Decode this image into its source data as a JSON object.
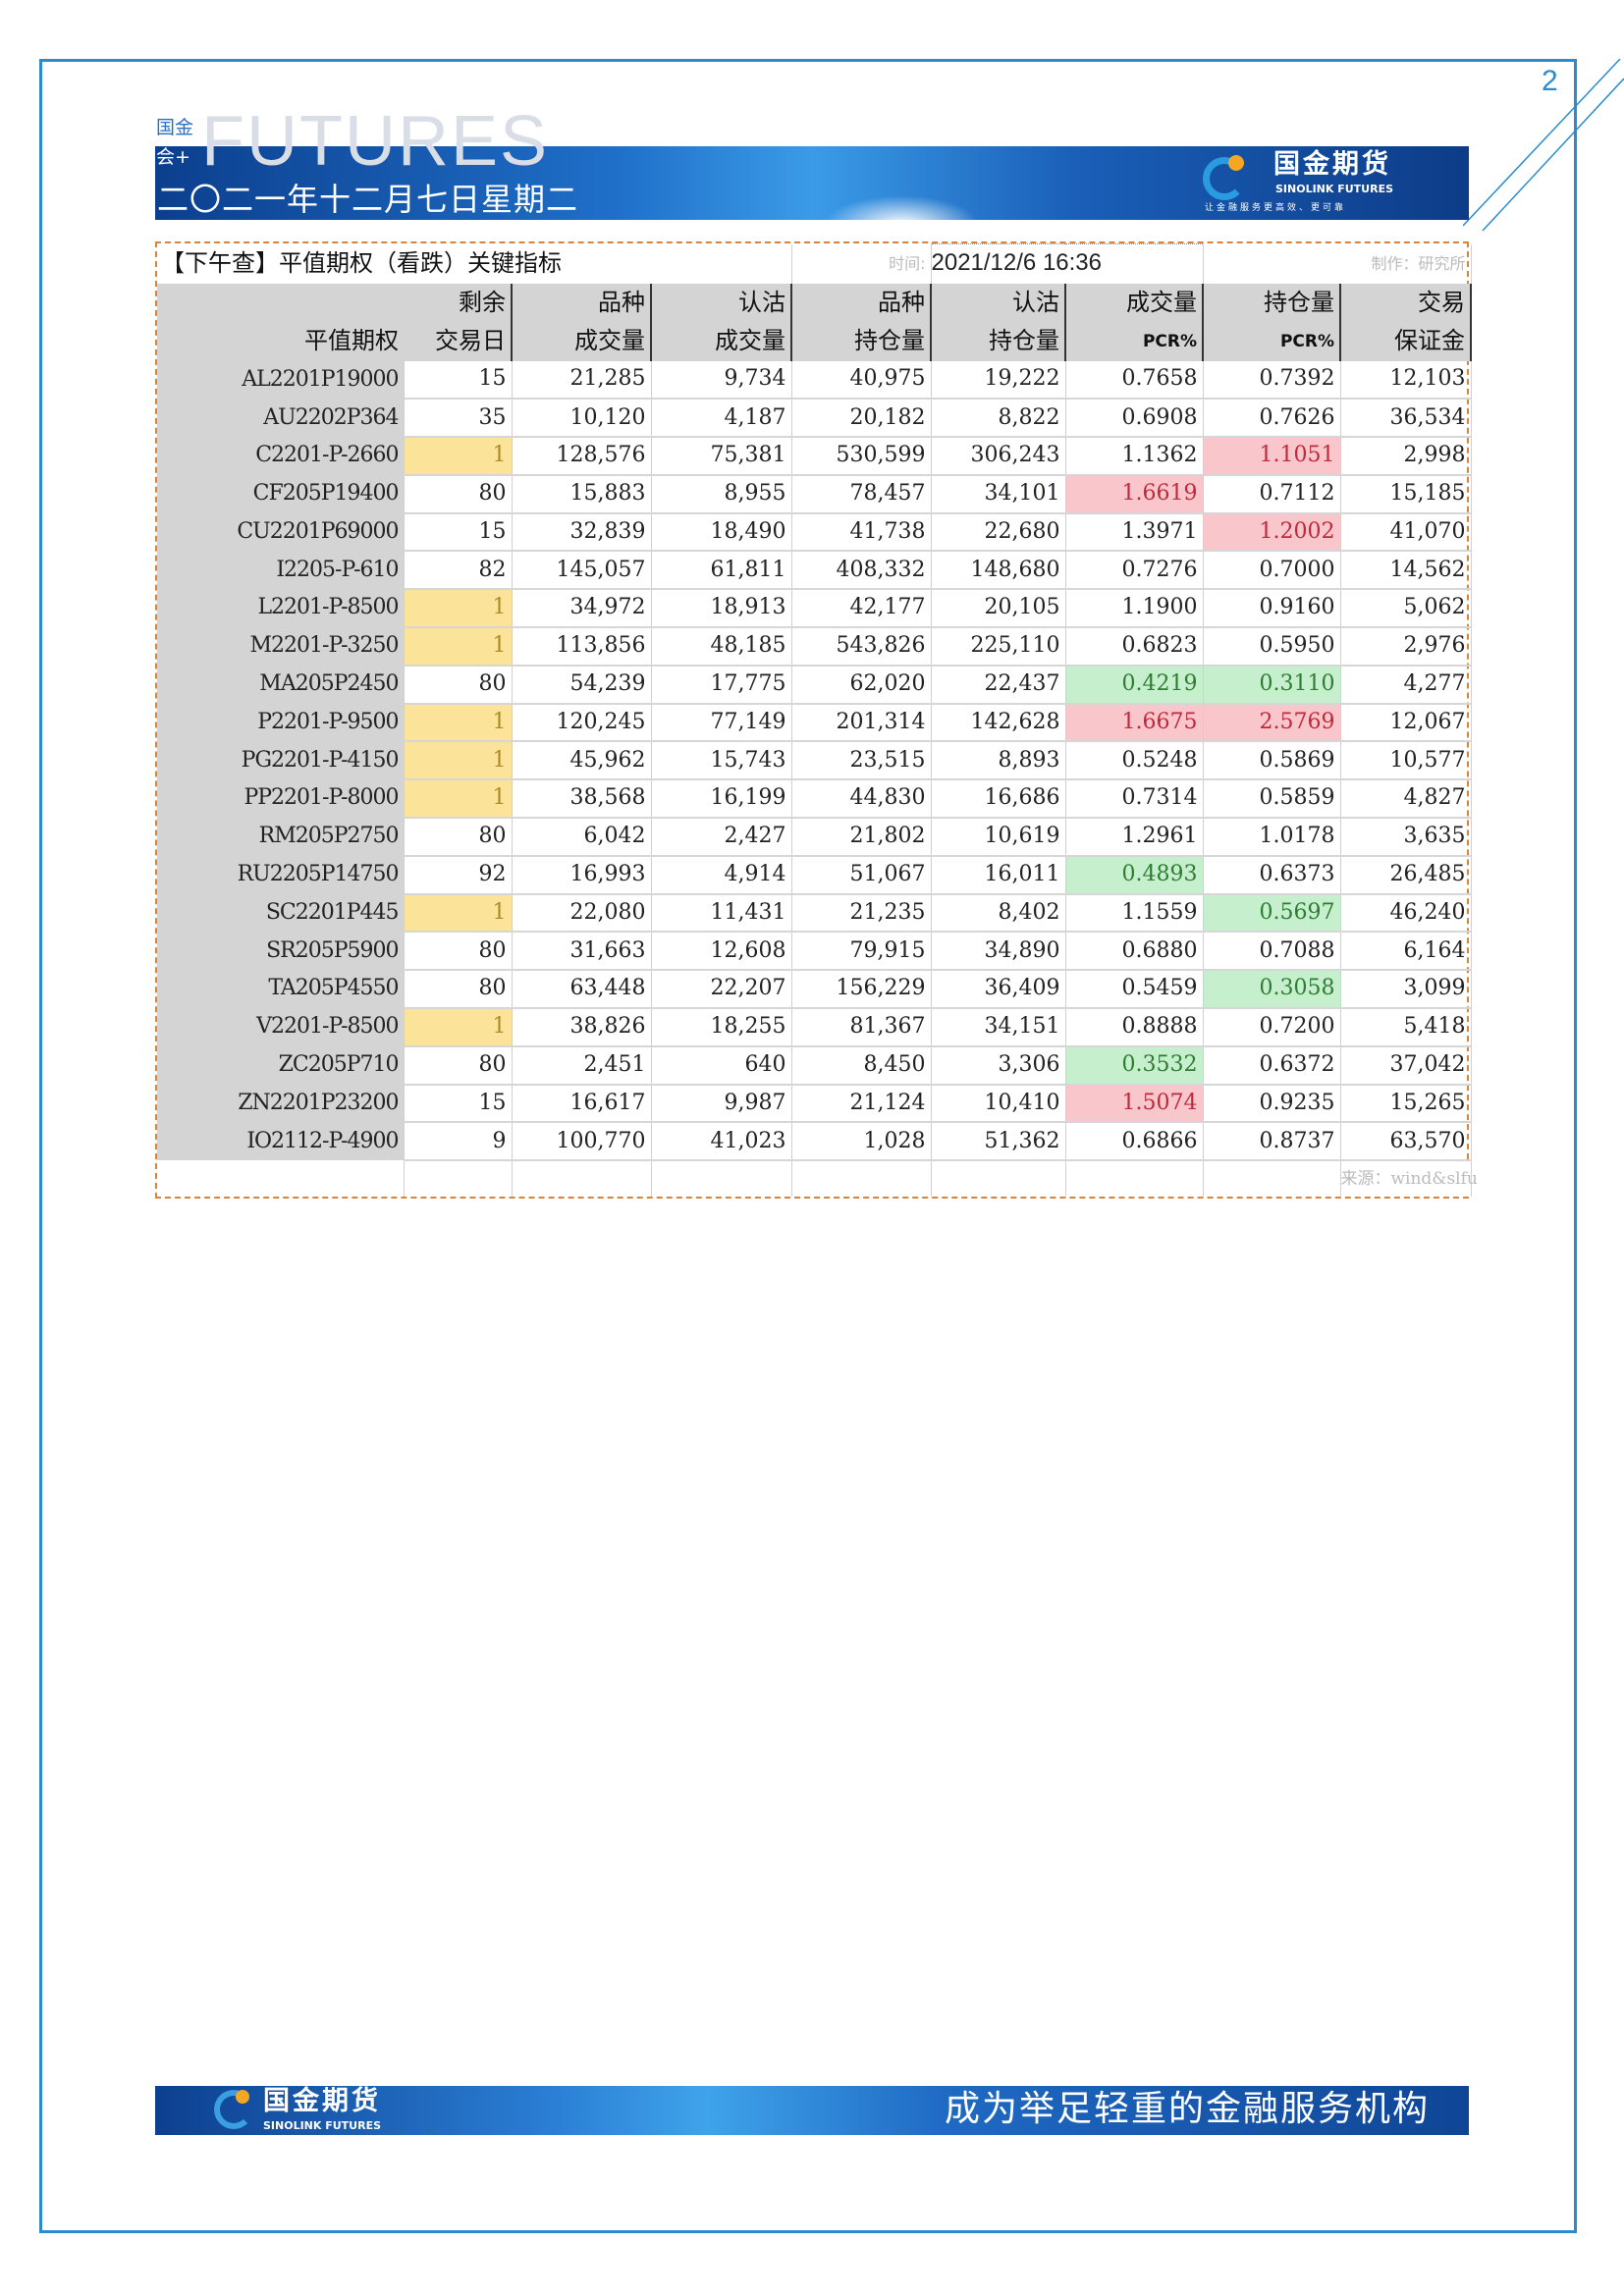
{
  "page_number": "2",
  "header": {
    "brand_small_1": "国金",
    "brand_small_2": "会+",
    "futures_word": "FUTURES",
    "date_cn": "二〇二一年十二月七日星期二",
    "logo": {
      "cn": "国金期货",
      "en": "SINOLINK FUTURES",
      "slogan": "让金融服务更高效、更可靠"
    }
  },
  "table": {
    "title": "【下午查】平值期权（看跌）关键指标",
    "time_label": "时间:",
    "time_value": "2021/12/6 16:36",
    "author": "制作：研究所",
    "source": "来源：wind&slfu",
    "headers": [
      [
        "",
        "平值期权"
      ],
      [
        "剩余",
        "交易日"
      ],
      [
        "品种",
        "成交量"
      ],
      [
        "认沽",
        "成交量"
      ],
      [
        "品种",
        "持仓量"
      ],
      [
        "认沽",
        "持仓量"
      ],
      [
        "成交量",
        "PCR%"
      ],
      [
        "持仓量",
        "PCR%"
      ],
      [
        "交易",
        "保证金"
      ]
    ],
    "rows": [
      [
        "AL2201P19000",
        "15",
        "21,285",
        "9,734",
        "40,975",
        "19,222",
        "0.7658",
        "0.7392",
        "12,103"
      ],
      [
        "AU2202P364",
        "35",
        "10,120",
        "4,187",
        "20,182",
        "8,822",
        "0.6908",
        "0.7626",
        "36,534"
      ],
      [
        "C2201-P-2660",
        "1",
        "128,576",
        "75,381",
        "530,599",
        "306,243",
        "1.1362",
        "1.1051",
        "2,998"
      ],
      [
        "CF205P19400",
        "80",
        "15,883",
        "8,955",
        "78,457",
        "34,101",
        "1.6619",
        "0.7112",
        "15,185"
      ],
      [
        "CU2201P69000",
        "15",
        "32,839",
        "18,490",
        "41,738",
        "22,680",
        "1.3971",
        "1.2002",
        "41,070"
      ],
      [
        "I2205-P-610",
        "82",
        "145,057",
        "61,811",
        "408,332",
        "148,680",
        "0.7276",
        "0.7000",
        "14,562"
      ],
      [
        "L2201-P-8500",
        "1",
        "34,972",
        "18,913",
        "42,177",
        "20,105",
        "1.1900",
        "0.9160",
        "5,062"
      ],
      [
        "M2201-P-3250",
        "1",
        "113,856",
        "48,185",
        "543,826",
        "225,110",
        "0.6823",
        "0.5950",
        "2,976"
      ],
      [
        "MA205P2450",
        "80",
        "54,239",
        "17,775",
        "62,020",
        "22,437",
        "0.4219",
        "0.3110",
        "4,277"
      ],
      [
        "P2201-P-9500",
        "1",
        "120,245",
        "77,149",
        "201,314",
        "142,628",
        "1.6675",
        "2.5769",
        "12,067"
      ],
      [
        "PG2201-P-4150",
        "1",
        "45,962",
        "15,743",
        "23,515",
        "8,893",
        "0.5248",
        "0.5869",
        "10,577"
      ],
      [
        "PP2201-P-8000",
        "1",
        "38,568",
        "16,199",
        "44,830",
        "16,686",
        "0.7314",
        "0.5859",
        "4,827"
      ],
      [
        "RM205P2750",
        "80",
        "6,042",
        "2,427",
        "21,802",
        "10,619",
        "1.2961",
        "1.0178",
        "3,635"
      ],
      [
        "RU2205P14750",
        "92",
        "16,993",
        "4,914",
        "51,067",
        "16,011",
        "0.4893",
        "0.6373",
        "26,485"
      ],
      [
        "SC2201P445",
        "1",
        "22,080",
        "11,431",
        "21,235",
        "8,402",
        "1.1559",
        "0.5697",
        "46,240"
      ],
      [
        "SR205P5900",
        "80",
        "31,663",
        "12,608",
        "79,915",
        "34,890",
        "0.6880",
        "0.7088",
        "6,164"
      ],
      [
        "TA205P4550",
        "80",
        "63,448",
        "22,207",
        "156,229",
        "36,409",
        "0.5459",
        "0.3058",
        "3,099"
      ],
      [
        "V2201-P-8500",
        "1",
        "38,826",
        "18,255",
        "81,367",
        "34,151",
        "0.8888",
        "0.7200",
        "5,418"
      ],
      [
        "ZC205P710",
        "80",
        "2,451",
        "640",
        "8,450",
        "3,306",
        "0.3532",
        "0.6372",
        "37,042"
      ],
      [
        "ZN2201P23200",
        "15",
        "16,617",
        "9,987",
        "21,124",
        "10,410",
        "1.5074",
        "0.9235",
        "15,265"
      ],
      [
        "IO2112-P-4900",
        "9",
        "100,770",
        "41,023",
        "1,028",
        "51,362",
        "0.6866",
        "0.8737",
        "63,570"
      ]
    ],
    "highlights": {
      "yellow_days": [
        2,
        6,
        7,
        9,
        10,
        11,
        14,
        17
      ],
      "red": {
        "2": [
          7
        ],
        "3": [
          6
        ],
        "4": [
          7
        ],
        "9": [
          6,
          7
        ],
        "19": [
          6
        ]
      },
      "green": {
        "8": [
          6,
          7
        ],
        "13": [
          6
        ],
        "14": [
          7
        ],
        "16": [
          7
        ],
        "18": [
          6
        ]
      }
    },
    "colors": {
      "yellow": "#fbe49a",
      "red": "#f9c6cc",
      "green": "#c6efce",
      "border": "#d9843a"
    }
  },
  "footer": {
    "cn": "国金期货",
    "en": "SINOLINK FUTURES",
    "slogan": "成为举足轻重的金融服务机构"
  }
}
